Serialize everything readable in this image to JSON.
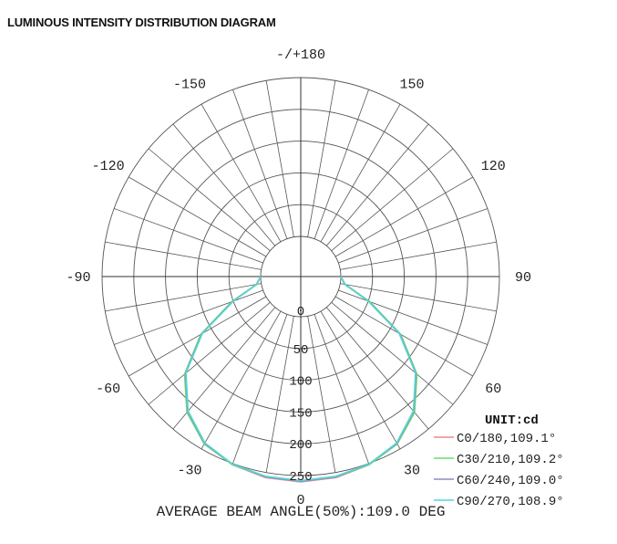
{
  "title": "LUMINOUS INTENSITY DISTRIBUTION DIAGRAM",
  "chart_data": {
    "type": "polar",
    "unit_label": "UNIT:cd",
    "angle_labels": [
      "-/+180",
      "-150",
      "150",
      "-120",
      "120",
      "-90",
      "90",
      "-60",
      "60",
      "-30",
      "30",
      "0"
    ],
    "radial_labels": [
      "0",
      "50",
      "100",
      "150",
      "200",
      "250"
    ],
    "r_max": 250,
    "radial_grid_step": 50,
    "angular_grid_step_deg": 10,
    "footer": "AVERAGE BEAM ANGLE(50%):109.0 DEG",
    "colors": {
      "grid": "#555555",
      "axes": "#333333",
      "text": "#222222"
    },
    "series": [
      {
        "name": "C0/180,109.1°",
        "color": "#e58b8b",
        "angles": [
          -90,
          -80,
          -70,
          -60,
          -50,
          -40,
          -30,
          -20,
          -10,
          0,
          10,
          20,
          30,
          40,
          50,
          60,
          70,
          80,
          90
        ],
        "values": [
          0,
          8,
          52,
          118,
          175,
          215,
          240,
          252,
          258,
          260,
          258,
          252,
          240,
          215,
          175,
          118,
          52,
          8,
          0
        ]
      },
      {
        "name": "C30/210,109.2°",
        "color": "#6fdc6f",
        "angles": [
          -90,
          -80,
          -70,
          -60,
          -50,
          -40,
          -30,
          -20,
          -10,
          0,
          10,
          20,
          30,
          40,
          50,
          60,
          70,
          80,
          90
        ],
        "values": [
          0,
          8,
          53,
          119,
          176,
          216,
          241,
          252,
          257,
          259,
          257,
          252,
          241,
          216,
          176,
          119,
          53,
          8,
          0
        ]
      },
      {
        "name": "C60/240,109.0°",
        "color": "#8c8cc8",
        "angles": [
          -90,
          -80,
          -70,
          -60,
          -50,
          -40,
          -30,
          -20,
          -10,
          0,
          10,
          20,
          30,
          40,
          50,
          60,
          70,
          80,
          90
        ],
        "values": [
          0,
          7,
          51,
          117,
          174,
          214,
          240,
          251,
          257,
          259,
          257,
          251,
          240,
          214,
          174,
          117,
          51,
          7,
          0
        ]
      },
      {
        "name": "C90/270,108.9°",
        "color": "#55d6d6",
        "angles": [
          -90,
          -80,
          -70,
          -60,
          -50,
          -40,
          -30,
          -20,
          -10,
          0,
          10,
          20,
          30,
          40,
          50,
          60,
          70,
          80,
          90
        ],
        "values": [
          0,
          7,
          50,
          116,
          173,
          213,
          239,
          251,
          256,
          258,
          256,
          251,
          239,
          213,
          173,
          116,
          50,
          7,
          0
        ]
      }
    ]
  }
}
